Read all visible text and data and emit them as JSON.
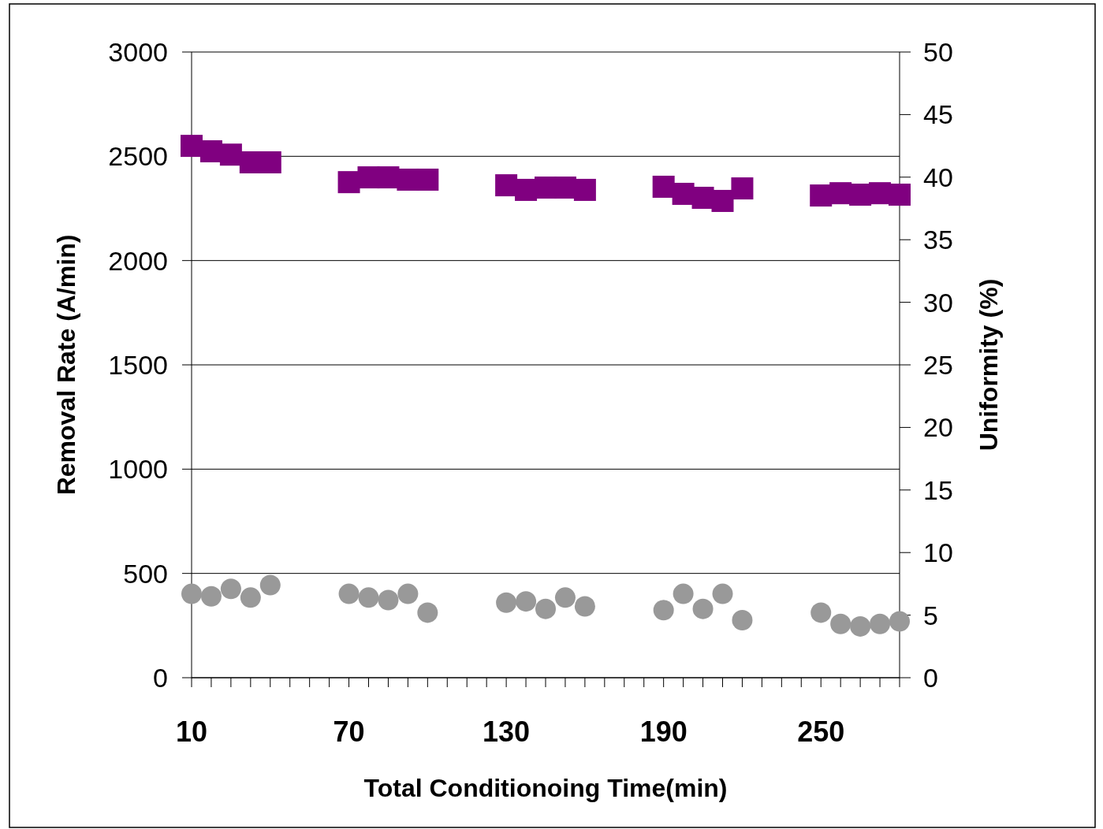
{
  "chart_data": {
    "type": "scatter",
    "xlabel": "Total Conditionoing Time(min)",
    "ylabel": "Removal Rate (A/min)",
    "y2label": "Uniformity (%)",
    "xlim": [
      10,
      280
    ],
    "xticks": [
      10,
      {
        "value": 17.5,
        "label": null
      },
      {
        "value": 25,
        "label": null
      },
      {
        "value": 32.5,
        "label": null
      },
      {
        "value": 40,
        "label": null
      },
      {
        "value": 47.5,
        "label": null
      },
      {
        "value": 55,
        "label": null
      },
      {
        "value": 62.5,
        "label": null
      },
      70,
      {
        "value": 77.5,
        "label": null
      },
      {
        "value": 85,
        "label": null
      },
      {
        "value": 92.5,
        "label": null
      },
      {
        "value": 100,
        "label": null
      },
      {
        "value": 107.5,
        "label": null
      },
      {
        "value": 115,
        "label": null
      },
      {
        "value": 122.5,
        "label": null
      },
      130,
      {
        "value": 137.5,
        "label": null
      },
      {
        "value": 145,
        "label": null
      },
      {
        "value": 152.5,
        "label": null
      },
      {
        "value": 160,
        "label": null
      },
      {
        "value": 167.5,
        "label": null
      },
      {
        "value": 175,
        "label": null
      },
      {
        "value": 182.5,
        "label": null
      },
      190,
      {
        "value": 197.5,
        "label": null
      },
      {
        "value": 205,
        "label": null
      },
      {
        "value": 212.5,
        "label": null
      },
      {
        "value": 220,
        "label": null
      },
      {
        "value": 227.5,
        "label": null
      },
      {
        "value": 235,
        "label": null
      },
      {
        "value": 242.5,
        "label": null
      },
      250,
      {
        "value": 257.5,
        "label": null
      },
      {
        "value": 265,
        "label": null
      },
      {
        "value": 272.5,
        "label": null
      },
      {
        "value": 280,
        "label": null
      }
    ],
    "ylim": [
      0,
      3000
    ],
    "yticks": [
      0,
      500,
      1000,
      1500,
      2000,
      2500,
      3000
    ],
    "y2lim": [
      0,
      50
    ],
    "y2ticks": [
      0,
      5,
      10,
      15,
      20,
      25,
      30,
      35,
      40,
      45,
      50
    ],
    "grid": "y",
    "x": [
      10,
      17.5,
      25,
      32.5,
      40,
      70,
      77.5,
      85,
      92.5,
      100,
      130,
      137.5,
      145,
      152.5,
      160,
      190,
      197.5,
      205,
      212.5,
      220,
      250,
      257.5,
      265,
      272.5,
      280
    ],
    "series": [
      {
        "color": "#800080",
        "marker": "square",
        "values": [
          2550,
          2524,
          2508,
          2471,
          2471,
          2376,
          2399,
          2399,
          2388,
          2388,
          2361,
          2339,
          2350,
          2350,
          2339,
          2354,
          2320,
          2301,
          2286,
          2346,
          2312,
          2323,
          2316,
          2323,
          2316
        ]
      },
      {
        "color": "#999999",
        "marker": "circle",
        "axis": "y2",
        "values": [
          6.7,
          6.5,
          7.1,
          6.4,
          7.4,
          6.7,
          6.4,
          6.2,
          6.7,
          5.2,
          6.0,
          6.1,
          5.5,
          6.4,
          5.7,
          5.4,
          6.7,
          5.5,
          6.7,
          4.6,
          5.2,
          4.3,
          4.1,
          4.3,
          4.5
        ]
      }
    ]
  }
}
